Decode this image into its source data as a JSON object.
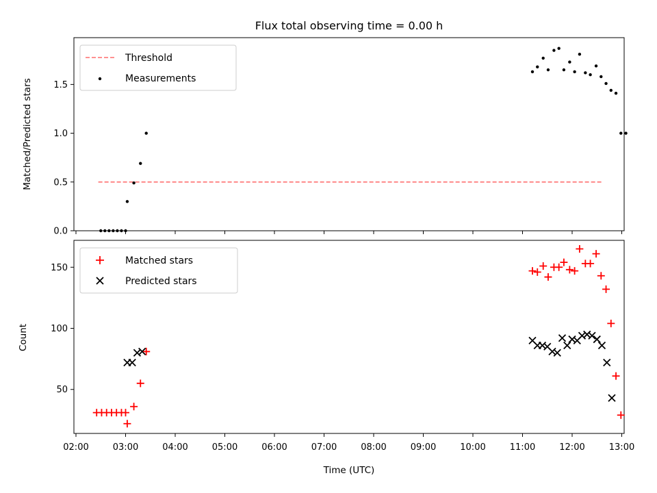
{
  "chart_data": {
    "title": "Flux total observing time = 0.00 h",
    "xlabel": "Time (UTC)",
    "xlim": [
      "02:00",
      "13:00"
    ],
    "xticks": [
      "02:00",
      "03:00",
      "04:00",
      "05:00",
      "06:00",
      "07:00",
      "08:00",
      "09:00",
      "10:00",
      "11:00",
      "12:00",
      "13:00"
    ],
    "panels": [
      {
        "type": "scatter",
        "ylabel": "Matched/Predicted stars",
        "ylim": [
          0,
          1.98
        ],
        "yticks": [
          "0.0",
          "0.5",
          "1.0",
          "1.5"
        ],
        "legend_position": "upper-left",
        "lines": [
          {
            "name": "Threshold",
            "color": "#ff8080",
            "style": "dashed",
            "x": [
              "02:27",
              "12:36"
            ],
            "y": [
              0.5,
              0.5
            ]
          }
        ],
        "series": [
          {
            "name": "Measurements",
            "color": "#000000",
            "marker": "dot",
            "x": [
              "02:30",
              "02:35",
              "02:40",
              "02:45",
              "02:50",
              "02:55",
              "03:00",
              "03:02",
              "03:10",
              "03:18",
              "03:25",
              "11:12",
              "11:18",
              "11:25",
              "11:31",
              "11:38",
              "11:44",
              "11:50",
              "11:57",
              "12:03",
              "12:09",
              "12:16",
              "12:22",
              "12:29",
              "12:35",
              "12:41",
              "12:47",
              "12:53",
              "12:59",
              "13:05"
            ],
            "y": [
              0,
              0,
              0,
              0,
              0,
              0,
              0,
              0.3,
              0.49,
              0.69,
              1.0,
              1.63,
              1.68,
              1.77,
              1.65,
              1.85,
              1.87,
              1.65,
              1.73,
              1.63,
              1.81,
              1.62,
              1.6,
              1.69,
              1.58,
              1.51,
              1.44,
              1.41,
              1.0,
              1.0
            ]
          }
        ]
      },
      {
        "type": "scatter",
        "ylabel": "Count",
        "ylim": [
          14,
          172
        ],
        "yticks": [
          "50",
          "100",
          "150"
        ],
        "legend_position": "upper-left",
        "series": [
          {
            "name": "Matched stars",
            "color": "#ff0000",
            "marker": "plus",
            "x": [
              "02:25",
              "02:31",
              "02:37",
              "02:43",
              "02:49",
              "02:55",
              "03:00",
              "03:02",
              "03:10",
              "03:18",
              "03:25",
              "11:12",
              "11:18",
              "11:25",
              "11:31",
              "11:38",
              "11:44",
              "11:50",
              "11:57",
              "12:03",
              "12:09",
              "12:16",
              "12:22",
              "12:29",
              "12:35",
              "12:41",
              "12:47",
              "12:53",
              "12:59"
            ],
            "y": [
              31,
              31,
              31,
              31,
              31,
              31,
              31,
              22,
              36,
              55,
              81,
              147,
              146,
              151,
              142,
              150,
              150,
              154,
              148,
              147,
              165,
              153,
              153,
              161,
              143,
              132,
              104,
              61,
              29
            ]
          },
          {
            "name": "Predicted stars",
            "color": "#000000",
            "marker": "x",
            "x": [
              "03:02",
              "03:08",
              "03:14",
              "03:20",
              "11:12",
              "11:18",
              "11:24",
              "11:30",
              "11:36",
              "11:42",
              "11:48",
              "11:54",
              "12:00",
              "12:06",
              "12:12",
              "12:18",
              "12:24",
              "12:30",
              "12:36",
              "12:42",
              "12:48"
            ],
            "y": [
              72,
              72,
              80,
              81,
              90,
              86,
              86,
              85,
              81,
              80,
              92,
              86,
              91,
              90,
              94,
              95,
              94,
              91,
              86,
              72,
              43
            ]
          }
        ]
      }
    ]
  }
}
